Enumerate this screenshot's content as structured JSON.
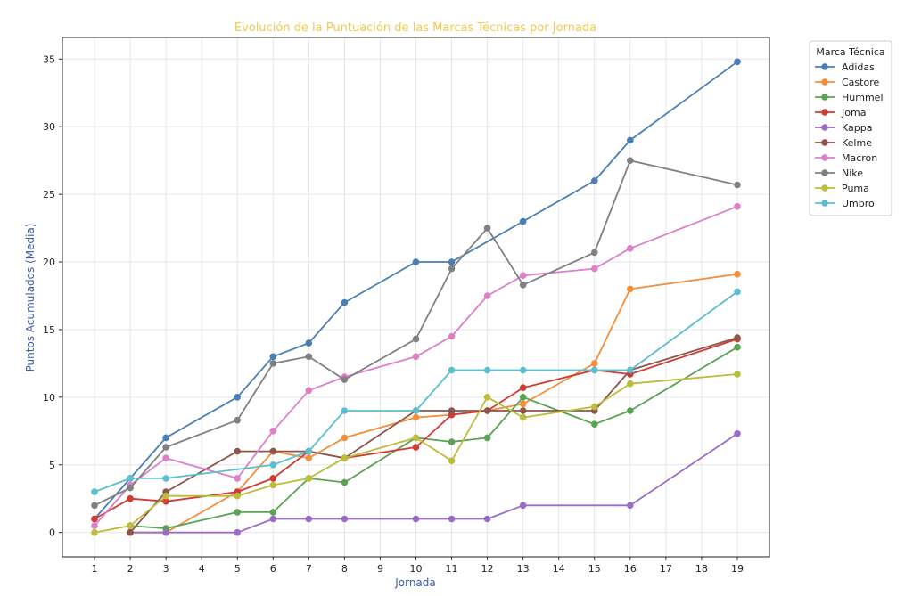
{
  "chart_data": {
    "type": "line",
    "title": "Evolución de la Puntuación de las Marcas Técnicas por Jornada",
    "xlabel": "Jornada",
    "ylabel": "Puntos Acumulados (Media)",
    "xlim": [
      0.1,
      19.9
    ],
    "ylim": [
      -1.8,
      36.6
    ],
    "x_ticks": [
      1,
      2,
      3,
      4,
      5,
      6,
      7,
      8,
      9,
      10,
      11,
      12,
      13,
      14,
      15,
      16,
      17,
      18,
      19
    ],
    "y_ticks": [
      0,
      5,
      10,
      15,
      20,
      25,
      30,
      35
    ],
    "grid": true,
    "legend_title": "Marca Técnica",
    "legend_position": "outside-top-right",
    "series": [
      {
        "name": "Adidas",
        "color": "#4a7fb5",
        "points": [
          [
            1,
            1
          ],
          [
            2,
            4
          ],
          [
            3,
            7
          ],
          [
            5,
            10
          ],
          [
            6,
            13
          ],
          [
            7,
            14
          ],
          [
            8,
            17
          ],
          [
            10,
            20
          ],
          [
            11,
            20
          ],
          [
            13,
            23
          ],
          [
            15,
            26
          ],
          [
            16,
            29
          ],
          [
            19,
            34.8
          ]
        ]
      },
      {
        "name": "Castore",
        "color": "#f28e3c",
        "points": [
          [
            2,
            0
          ],
          [
            3,
            0
          ],
          [
            5,
            3
          ],
          [
            6,
            6
          ],
          [
            7,
            5.5
          ],
          [
            8,
            7
          ],
          [
            10,
            8.5
          ],
          [
            11,
            8.7
          ],
          [
            12,
            9
          ],
          [
            13,
            9.5
          ],
          [
            15,
            12.5
          ],
          [
            16,
            18
          ],
          [
            19,
            19.1
          ]
        ]
      },
      {
        "name": "Hummel",
        "color": "#5aa353",
        "points": [
          [
            2,
            0.5
          ],
          [
            3,
            0.3
          ],
          [
            5,
            1.5
          ],
          [
            6,
            1.5
          ],
          [
            7,
            4
          ],
          [
            8,
            3.7
          ],
          [
            10,
            7
          ],
          [
            11,
            6.7
          ],
          [
            12,
            7
          ],
          [
            13,
            10
          ],
          [
            15,
            8
          ],
          [
            16,
            9
          ],
          [
            19,
            13.7
          ]
        ]
      },
      {
        "name": "Joma",
        "color": "#d03b33",
        "points": [
          [
            1,
            1
          ],
          [
            2,
            2.5
          ],
          [
            3,
            2.3
          ],
          [
            5,
            3
          ],
          [
            6,
            4
          ],
          [
            7,
            6
          ],
          [
            8,
            5.5
          ],
          [
            10,
            6.3
          ],
          [
            11,
            8.7
          ],
          [
            12,
            9
          ],
          [
            13,
            10.7
          ],
          [
            15,
            12
          ],
          [
            16,
            11.7
          ],
          [
            19,
            14.3
          ]
        ]
      },
      {
        "name": "Kappa",
        "color": "#9b6dc6",
        "points": [
          [
            2,
            0
          ],
          [
            3,
            0
          ],
          [
            5,
            0
          ],
          [
            6,
            1
          ],
          [
            7,
            1
          ],
          [
            8,
            1
          ],
          [
            10,
            1
          ],
          [
            11,
            1
          ],
          [
            12,
            1
          ],
          [
            13,
            2
          ],
          [
            16,
            2
          ],
          [
            19,
            7.3
          ]
        ]
      },
      {
        "name": "Kelme",
        "color": "#8c564b",
        "points": [
          [
            2,
            0
          ],
          [
            3,
            3
          ],
          [
            5,
            6
          ],
          [
            6,
            6
          ],
          [
            7,
            6
          ],
          [
            8,
            5.5
          ],
          [
            10,
            9
          ],
          [
            11,
            9
          ],
          [
            12,
            9
          ],
          [
            13,
            9
          ],
          [
            15,
            9
          ],
          [
            16,
            12
          ],
          [
            19,
            14.4
          ]
        ]
      },
      {
        "name": "Macron",
        "color": "#dd80c8",
        "points": [
          [
            1,
            0.5
          ],
          [
            2,
            3.5
          ],
          [
            3,
            5.5
          ],
          [
            5,
            4
          ],
          [
            6,
            7.5
          ],
          [
            7,
            10.5
          ],
          [
            8,
            11.5
          ],
          [
            10,
            13
          ],
          [
            11,
            14.5
          ],
          [
            12,
            17.5
          ],
          [
            13,
            19
          ],
          [
            15,
            19.5
          ],
          [
            16,
            21
          ],
          [
            19,
            24.1
          ]
        ]
      },
      {
        "name": "Nike",
        "color": "#808080",
        "points": [
          [
            1,
            2
          ],
          [
            2,
            3.3
          ],
          [
            3,
            6.3
          ],
          [
            5,
            8.3
          ],
          [
            6,
            12.5
          ],
          [
            7,
            13
          ],
          [
            8,
            11.3
          ],
          [
            10,
            14.3
          ],
          [
            11,
            19.5
          ],
          [
            12,
            22.5
          ],
          [
            13,
            18.3
          ],
          [
            15,
            20.7
          ],
          [
            16,
            27.5
          ],
          [
            19,
            25.7
          ]
        ]
      },
      {
        "name": "Puma",
        "color": "#bcbd3a",
        "points": [
          [
            1,
            0
          ],
          [
            2,
            0.5
          ],
          [
            3,
            2.7
          ],
          [
            5,
            2.7
          ],
          [
            6,
            3.5
          ],
          [
            7,
            4
          ],
          [
            8,
            5.5
          ],
          [
            10,
            7
          ],
          [
            11,
            5.3
          ],
          [
            12,
            10
          ],
          [
            13,
            8.5
          ],
          [
            15,
            9.3
          ],
          [
            16,
            11
          ],
          [
            19,
            11.7
          ]
        ]
      },
      {
        "name": "Umbro",
        "color": "#5bbfd0",
        "points": [
          [
            1,
            3
          ],
          [
            2,
            4
          ],
          [
            3,
            4
          ],
          [
            6,
            5
          ],
          [
            7,
            6
          ],
          [
            8,
            9
          ],
          [
            10,
            9
          ],
          [
            11,
            12
          ],
          [
            12,
            12
          ],
          [
            13,
            12
          ],
          [
            15,
            12
          ],
          [
            16,
            12
          ],
          [
            19,
            17.8
          ]
        ]
      }
    ]
  }
}
